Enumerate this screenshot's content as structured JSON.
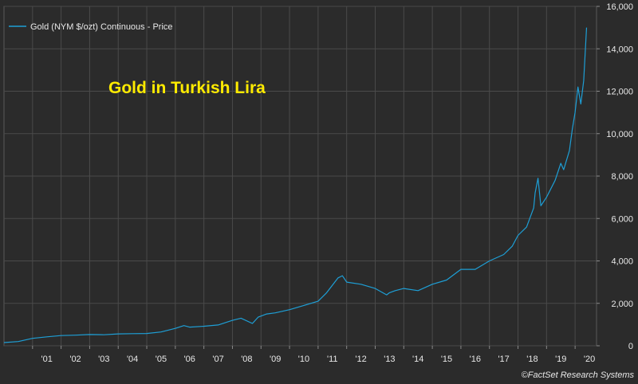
{
  "chart_data": {
    "type": "line",
    "title": "",
    "annotation": "Gold in Turkish Lira",
    "credit": "©FactSet Research Systems",
    "xlabel": "",
    "ylabel": "",
    "xlim": [
      2000.0,
      2020.75
    ],
    "ylim": [
      0,
      16000
    ],
    "y_ticks": [
      0,
      2000,
      4000,
      6000,
      8000,
      10000,
      12000,
      14000,
      16000
    ],
    "y_tick_labels": [
      "0",
      "2,000",
      "4,000",
      "6,000",
      "8,000",
      "10,000",
      "12,000",
      "14,000",
      "16,000"
    ],
    "x_tick_years": [
      2001,
      2002,
      2003,
      2004,
      2005,
      2006,
      2007,
      2008,
      2009,
      2010,
      2011,
      2012,
      2013,
      2014,
      2015,
      2016,
      2017,
      2018,
      2019,
      2020
    ],
    "x_tick_labels": [
      "'01",
      "'02",
      "'03",
      "'04",
      "'05",
      "'06",
      "'07",
      "'08",
      "'09",
      "'10",
      "'11",
      "'12",
      "'13",
      "'14",
      "'15",
      "'16",
      "'17",
      "'18",
      "'19",
      "'20"
    ],
    "grid": true,
    "legend_position": "top-left",
    "series": [
      {
        "name": "Gold (NYM $/ozt) Continuous - Price",
        "color": "#1e9fd6",
        "x": [
          2000.0,
          2000.5,
          2001.0,
          2001.5,
          2002.0,
          2002.5,
          2003.0,
          2003.5,
          2004.0,
          2004.5,
          2005.0,
          2005.5,
          2006.0,
          2006.3,
          2006.5,
          2007.0,
          2007.5,
          2008.0,
          2008.3,
          2008.7,
          2008.9,
          2009.2,
          2009.5,
          2010.0,
          2010.5,
          2011.0,
          2011.3,
          2011.7,
          2011.85,
          2012.0,
          2012.5,
          2013.0,
          2013.4,
          2013.5,
          2013.7,
          2014.0,
          2014.5,
          2015.0,
          2015.5,
          2016.0,
          2016.5,
          2017.0,
          2017.5,
          2017.8,
          2018.0,
          2018.3,
          2018.55,
          2018.6,
          2018.7,
          2018.8,
          2019.0,
          2019.3,
          2019.5,
          2019.6,
          2019.8,
          2019.9,
          2020.0,
          2020.1,
          2020.2,
          2020.3,
          2020.4
        ],
        "y": [
          150,
          200,
          350,
          420,
          480,
          500,
          530,
          520,
          560,
          570,
          580,
          650,
          820,
          950,
          880,
          920,
          980,
          1200,
          1300,
          1050,
          1350,
          1500,
          1550,
          1700,
          1900,
          2100,
          2500,
          3200,
          3300,
          3000,
          2900,
          2700,
          2400,
          2500,
          2600,
          2700,
          2600,
          2900,
          3100,
          3600,
          3600,
          4000,
          4300,
          4700,
          5200,
          5600,
          6500,
          7200,
          7900,
          6600,
          7000,
          7800,
          8600,
          8300,
          9200,
          10200,
          11000,
          12200,
          11400,
          12500,
          15000
        ]
      }
    ]
  }
}
